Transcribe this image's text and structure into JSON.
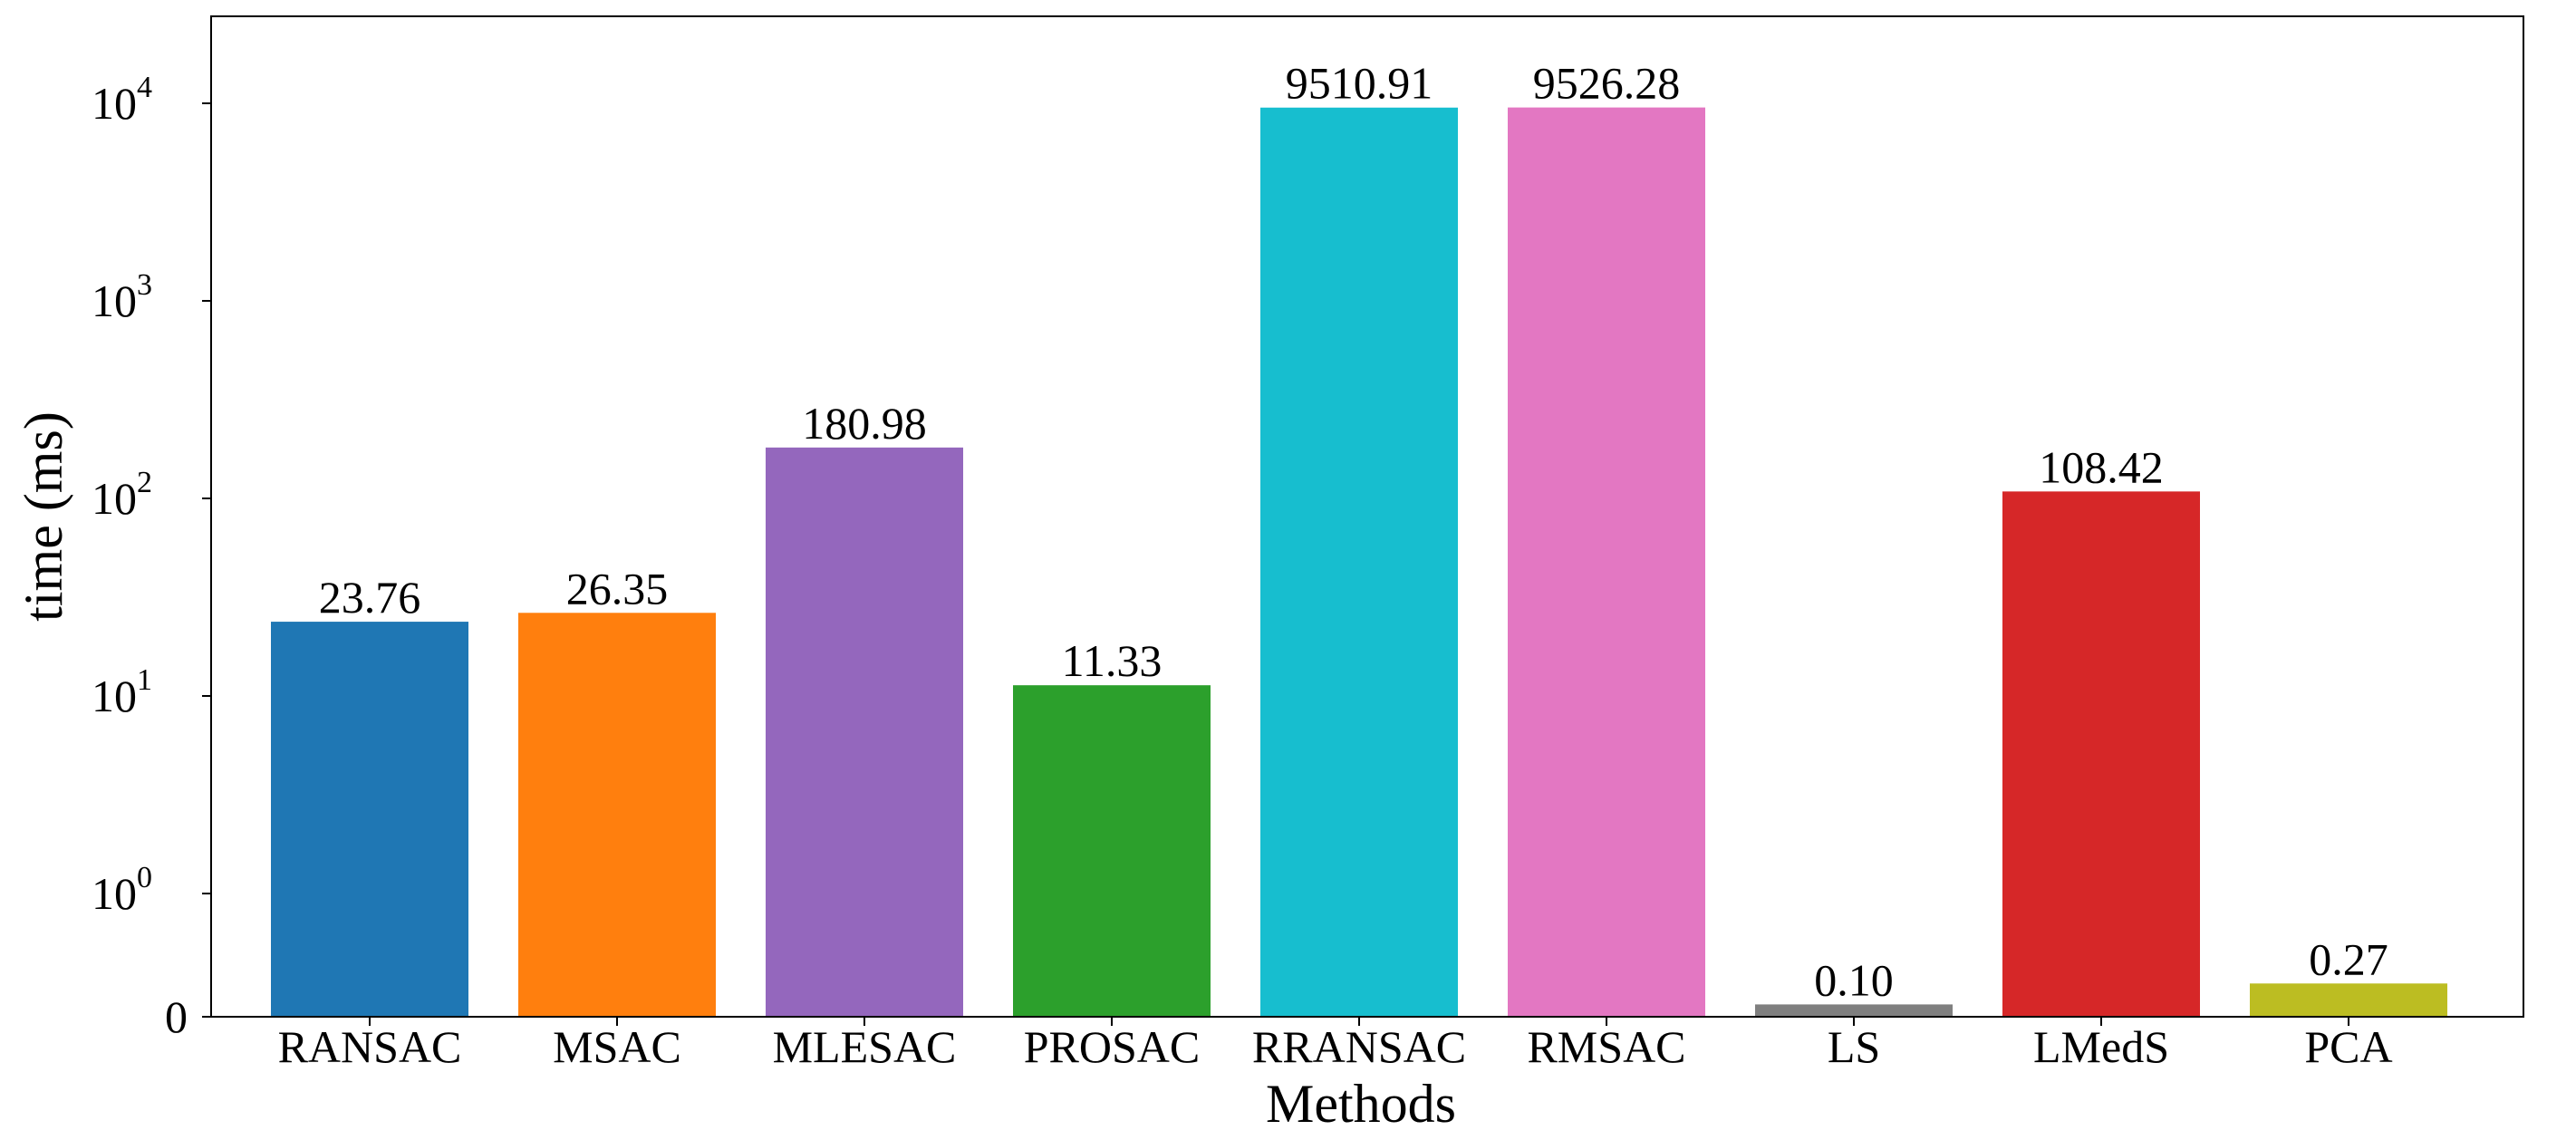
{
  "chart_data": {
    "type": "bar",
    "xlabel": "Methods",
    "ylabel": "time (ms)",
    "yscale": "symlog",
    "categories": [
      "RANSAC",
      "MSAC",
      "MLESAC",
      "PROSAC",
      "RRANSAC",
      "RMSAC",
      "LS",
      "LMedS",
      "PCA"
    ],
    "values": [
      23.76,
      26.35,
      180.98,
      11.33,
      9510.91,
      9526.28,
      0.1,
      108.42,
      0.27
    ],
    "value_labels": [
      "23.76",
      "26.35",
      "180.98",
      "11.33",
      "9510.91",
      "9526.28",
      "0.10",
      "108.42",
      "0.27"
    ],
    "colors": [
      "#1f77b4",
      "#ff7f0e",
      "#9467bd",
      "#2ca02c",
      "#17becf",
      "#e377c2",
      "#7f7f7f",
      "#d62728",
      "#bcbd22"
    ],
    "yticks": [
      {
        "value": 0,
        "base": "0",
        "exp": ""
      },
      {
        "value": 1,
        "base": "10",
        "exp": "0"
      },
      {
        "value": 10,
        "base": "10",
        "exp": "1"
      },
      {
        "value": 100,
        "base": "10",
        "exp": "2"
      },
      {
        "value": 1000,
        "base": "10",
        "exp": "3"
      },
      {
        "value": 10000,
        "base": "10",
        "exp": "4"
      }
    ],
    "grid": false,
    "legend": "none"
  }
}
